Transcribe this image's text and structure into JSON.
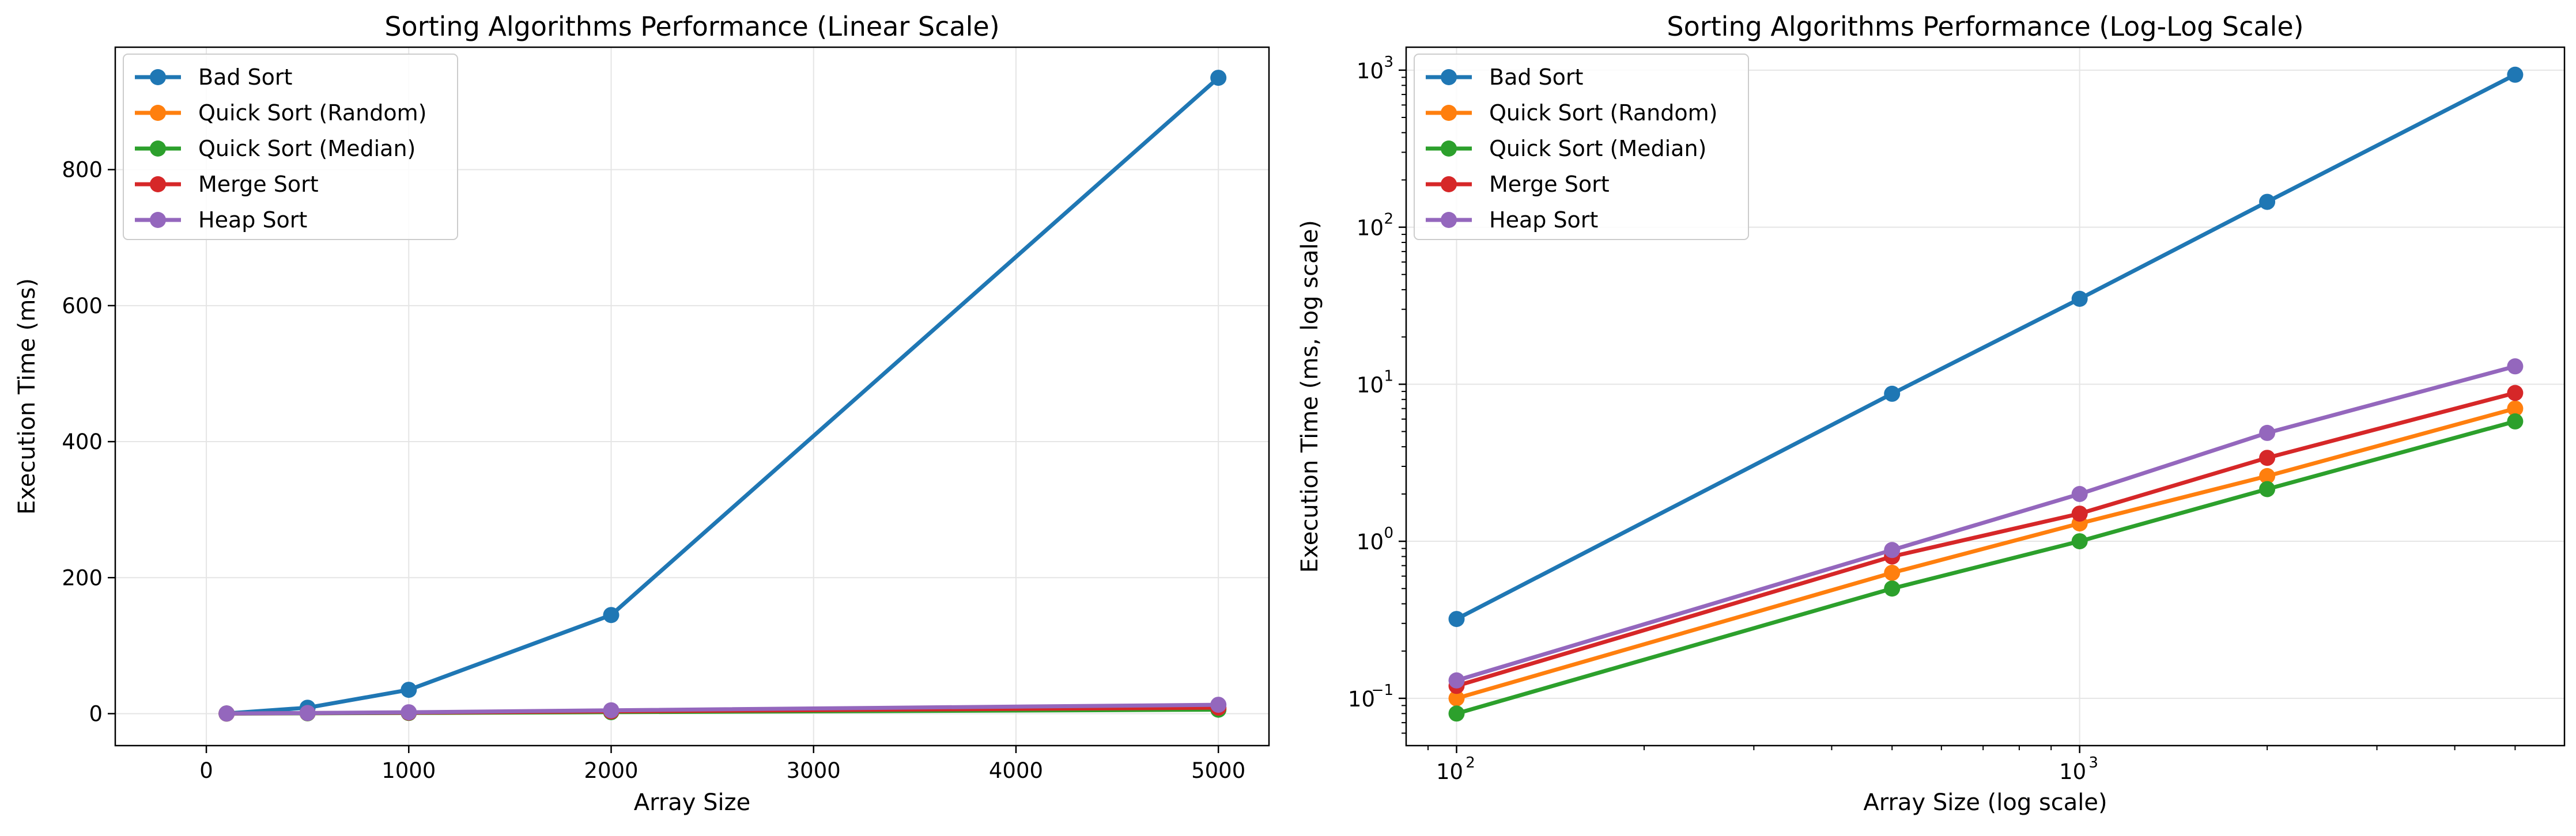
{
  "colors": {
    "bad_sort": "#1f77b4",
    "quick_random": "#ff7f0e",
    "quick_median": "#2ca02c",
    "merge": "#d62728",
    "heap": "#9467bd",
    "grid": "#e5e5e5",
    "axes": "#000000"
  },
  "chart_data": [
    {
      "type": "line",
      "title": "Sorting Algorithms Performance (Linear Scale)",
      "xlabel": "Array Size",
      "ylabel": "Execution Time (ms)",
      "xscale": "linear",
      "yscale": "linear",
      "xlim": [
        -450,
        5250
      ],
      "ylim": [
        -47,
        980
      ],
      "xticks": [
        0,
        1000,
        2000,
        3000,
        4000,
        5000
      ],
      "xtick_labels": [
        "0",
        "1000",
        "2000",
        "3000",
        "4000",
        "5000"
      ],
      "yticks": [
        0,
        200,
        400,
        600,
        800
      ],
      "ytick_labels": [
        "0",
        "200",
        "400",
        "600",
        "800"
      ],
      "grid": true,
      "legend_loc": "top-left",
      "x": [
        100,
        500,
        1000,
        2000,
        5000
      ],
      "series": [
        {
          "name": "Bad Sort",
          "color_key": "bad_sort",
          "values": [
            0.32,
            8.7,
            35,
            145,
            935
          ]
        },
        {
          "name": "Quick Sort (Random)",
          "color_key": "quick_random",
          "values": [
            0.1,
            0.63,
            1.3,
            2.6,
            7.0
          ]
        },
        {
          "name": "Quick Sort (Median)",
          "color_key": "quick_median",
          "values": [
            0.08,
            0.5,
            1.0,
            2.15,
            5.8
          ]
        },
        {
          "name": "Merge Sort",
          "color_key": "merge",
          "values": [
            0.12,
            0.8,
            1.5,
            3.4,
            8.8
          ]
        },
        {
          "name": "Heap Sort",
          "color_key": "heap",
          "values": [
            0.13,
            0.88,
            2.0,
            4.9,
            13
          ]
        }
      ]
    },
    {
      "type": "line",
      "title": "Sorting Algorithms Performance (Log-Log Scale)",
      "xlabel": "Array Size (log scale)",
      "ylabel": "Execution Time (ms, log scale)",
      "xscale": "log",
      "yscale": "log",
      "xlim": [
        83,
        6000
      ],
      "ylim": [
        0.05,
        1400
      ],
      "xticks": [
        100,
        1000
      ],
      "xtick_labels": [
        {
          "base": "10",
          "exp": "2"
        },
        {
          "base": "10",
          "exp": "3"
        }
      ],
      "yticks": [
        0.1,
        1,
        10,
        100,
        1000
      ],
      "ytick_labels": [
        {
          "base": "10",
          "exp": "−1"
        },
        {
          "base": "10",
          "exp": "0"
        },
        {
          "base": "10",
          "exp": "1"
        },
        {
          "base": "10",
          "exp": "2"
        },
        {
          "base": "10",
          "exp": "3"
        }
      ],
      "grid": true,
      "legend_loc": "top-left",
      "x": [
        100,
        500,
        1000,
        2000,
        5000
      ],
      "series": [
        {
          "name": "Bad Sort",
          "color_key": "bad_sort",
          "values": [
            0.32,
            8.7,
            35,
            145,
            935
          ]
        },
        {
          "name": "Quick Sort (Random)",
          "color_key": "quick_random",
          "values": [
            0.1,
            0.63,
            1.3,
            2.6,
            7.0
          ]
        },
        {
          "name": "Quick Sort (Median)",
          "color_key": "quick_median",
          "values": [
            0.08,
            0.5,
            1.0,
            2.15,
            5.8
          ]
        },
        {
          "name": "Merge Sort",
          "color_key": "merge",
          "values": [
            0.12,
            0.8,
            1.5,
            3.4,
            8.8
          ]
        },
        {
          "name": "Heap Sort",
          "color_key": "heap",
          "values": [
            0.13,
            0.88,
            2.0,
            4.9,
            13
          ]
        }
      ]
    }
  ]
}
